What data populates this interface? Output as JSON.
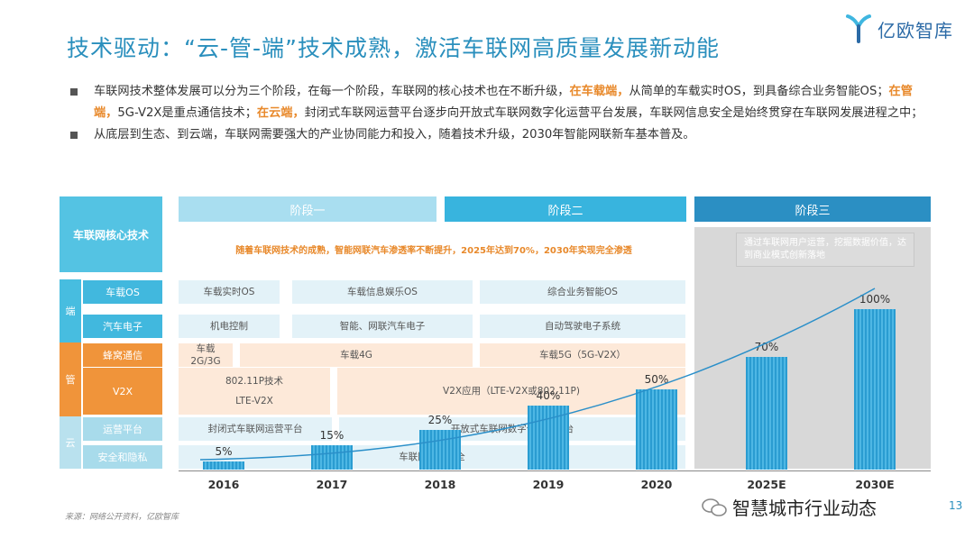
{
  "title": "技术驱动：“云-管-端”技术成熟，激活车联网高质量发展新动能",
  "logo": {
    "text": "亿欧智库"
  },
  "bullets": [
    {
      "segments": [
        {
          "text": "车联网技术整体发展可以分为三个阶段，在每一个阶段，车联网的核心技术也在不断升级，",
          "hl": false
        },
        {
          "text": "在车载端，",
          "hl": true
        },
        {
          "text": "从简单的车载实时OS，到具备综合业务智能OS；",
          "hl": false
        },
        {
          "text": "在管端，",
          "hl": true
        },
        {
          "text": "5G-V2X是重点通信技术；",
          "hl": false
        },
        {
          "text": "在云端，",
          "hl": true
        },
        {
          "text": "封闭式车联网运营平台逐步向开放式车联网数字化运营平台发展，车联网信息安全是始终贯穿在车联网发展进程之中；",
          "hl": false
        }
      ]
    },
    {
      "segments": [
        {
          "text": "从底层到生态、到云端，车联网需要强大的产业协同能力和投入，随着技术升级，2030年智能网联新车基本普及。",
          "hl": false
        }
      ]
    }
  ],
  "core_label": "车联网核心技术",
  "stages": [
    "阶段一",
    "阶段二",
    "阶段三"
  ],
  "adoption_text": "随着车联网技术的成熟，智能网联汽车渗透率不断提升，2025年达到70%，2030年实现完全渗透",
  "note": "通过车联网用户运营，挖掘数据价值，达到商业模式创新落地",
  "layers": {
    "end": "端",
    "pipe": "管",
    "cloud": "云"
  },
  "tech": [
    "车载OS",
    "汽车电子",
    "蜂窝通信",
    "V2X",
    "运营平台",
    "安全和隐私"
  ],
  "cells": {
    "os1": "车载实时OS",
    "os2": "车载信息娱乐OS",
    "os3": "综合业务智能OS",
    "el1": "机电控制",
    "el2": "智能、网联汽车电子",
    "el3": "自动驾驶电子系统",
    "cell1a": "车载",
    "cell1b": "2G/3G",
    "cell2": "车载4G",
    "cell3": "车载5G（5G-V2X）",
    "v2x1a": "802.11P技术",
    "v2x1b": "LTE-V2X",
    "v2x2": "V2X应用（LTE-V2X或802.11P)",
    "plat1": "封闭式车联网运营平台",
    "plat2": "开放式车联网数字化运营平台",
    "sec": "车联网信息安全"
  },
  "chart_data": {
    "type": "bar",
    "categories": [
      "2016",
      "2017",
      "2018",
      "2019",
      "2020",
      "2025E",
      "2030E"
    ],
    "values": [
      5,
      15,
      25,
      40,
      50,
      70,
      100
    ],
    "value_labels": [
      "5%",
      "15%",
      "25%",
      "40%",
      "50%",
      "70%",
      "100%"
    ],
    "ylim": [
      0,
      100
    ],
    "trend_line": true
  },
  "source": "来源：网络公开资料，亿欧智库",
  "watermark": "智慧城市行业动态",
  "page": "13"
}
